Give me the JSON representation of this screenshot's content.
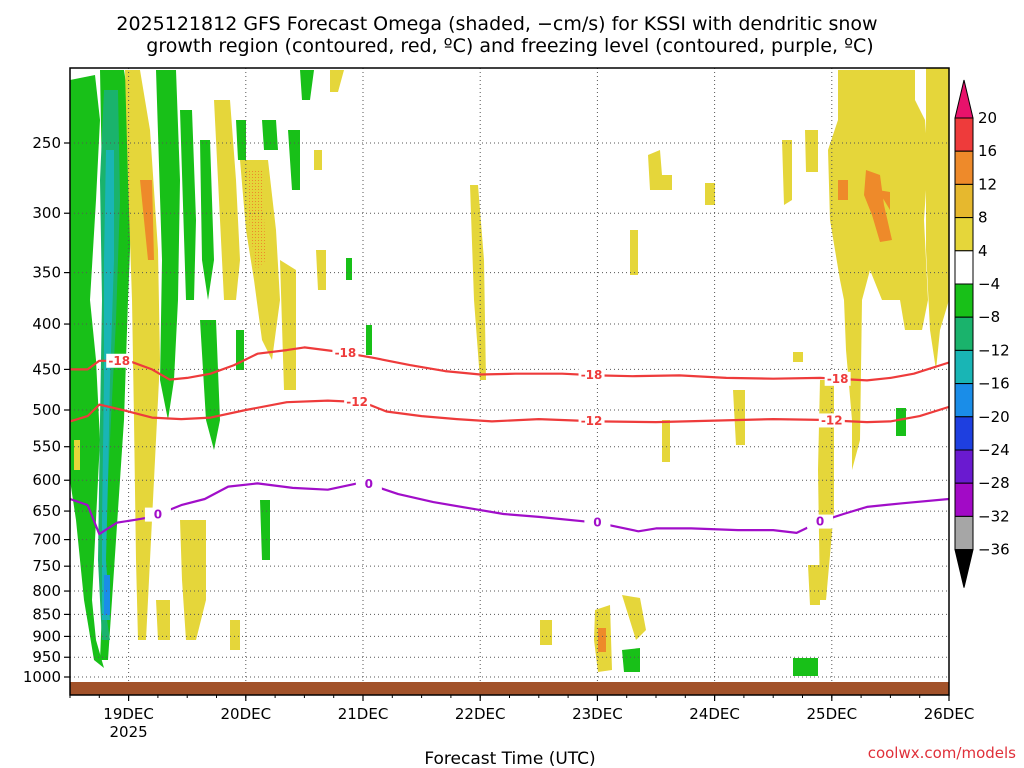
{
  "chart_data": {
    "type": "heatmap",
    "title_line1": "2025121812 GFS Forecast Omega (shaded, −cm/s) for KSSI with dendritic snow",
    "title_line2": "growth region (contoured, red, ºC) and freezing level (contoured, purple, ºC)",
    "xlabel": "Forecast Time (UTC)",
    "credit": "coolwx.com/models",
    "x_range_days": [
      0,
      7.5
    ],
    "x_ticks": [
      {
        "day": 0.5,
        "label": "19DEC",
        "sublabel": "2025"
      },
      {
        "day": 1.5,
        "label": "20DEC"
      },
      {
        "day": 2.5,
        "label": "21DEC"
      },
      {
        "day": 3.5,
        "label": "22DEC"
      },
      {
        "day": 4.5,
        "label": "23DEC"
      },
      {
        "day": 5.5,
        "label": "24DEC"
      },
      {
        "day": 6.5,
        "label": "25DEC"
      },
      {
        "day": 7.5,
        "label": "26DEC"
      }
    ],
    "y_axis": {
      "scale": "log",
      "range_hPa": [
        200,
        1030
      ],
      "ticks": [
        250,
        300,
        350,
        400,
        450,
        500,
        550,
        600,
        650,
        700,
        750,
        800,
        850,
        900,
        950,
        1000
      ]
    },
    "colorbar": {
      "levels": [
        20,
        16,
        12,
        8,
        4,
        -4,
        -8,
        -12,
        -16,
        -20,
        -24,
        -28,
        -32,
        -36
      ],
      "colors": [
        "#e8126b",
        "#ee3b3b",
        "#ee8a2a",
        "#e6b82e",
        "#e5d63a",
        "#ffffff",
        "#18c018",
        "#1ab36c",
        "#19b5b5",
        "#1a8de8",
        "#1e3fe0",
        "#6a1ad0",
        "#a20ac6",
        "#a6a6a6",
        "#000000"
      ]
    },
    "contours": [
      {
        "name": "-18",
        "color": "#ee3b3b",
        "points": [
          [
            0,
            450
          ],
          [
            0.15,
            450
          ],
          [
            0.25,
            440
          ],
          [
            0.5,
            440
          ],
          [
            0.7,
            450
          ],
          [
            0.85,
            462
          ],
          [
            1.0,
            460
          ],
          [
            1.2,
            455
          ],
          [
            1.4,
            445
          ],
          [
            1.6,
            432
          ],
          [
            1.85,
            428
          ],
          [
            2.0,
            425
          ],
          [
            2.3,
            430
          ],
          [
            2.6,
            437
          ],
          [
            2.9,
            445
          ],
          [
            3.2,
            452
          ],
          [
            3.5,
            456
          ],
          [
            3.8,
            455
          ],
          [
            4.2,
            455
          ],
          [
            4.5,
            457
          ],
          [
            4.8,
            458
          ],
          [
            5.2,
            457
          ],
          [
            5.6,
            460
          ],
          [
            6.0,
            461
          ],
          [
            6.4,
            460
          ],
          [
            6.8,
            463
          ],
          [
            7.0,
            460
          ],
          [
            7.2,
            455
          ],
          [
            7.5,
            442
          ]
        ],
        "labels": [
          0.42,
          2.35,
          4.45,
          6.55
        ]
      },
      {
        "name": "-12",
        "color": "#ee3b3b",
        "points": [
          [
            0,
            515
          ],
          [
            0.15,
            508
          ],
          [
            0.25,
            493
          ],
          [
            0.45,
            500
          ],
          [
            0.7,
            510
          ],
          [
            0.95,
            512
          ],
          [
            1.2,
            510
          ],
          [
            1.5,
            500
          ],
          [
            1.85,
            490
          ],
          [
            2.2,
            488
          ],
          [
            2.5,
            490
          ],
          [
            2.7,
            502
          ],
          [
            3.0,
            508
          ],
          [
            3.3,
            512
          ],
          [
            3.6,
            515
          ],
          [
            4.0,
            512
          ],
          [
            4.5,
            515
          ],
          [
            5.0,
            516
          ],
          [
            5.5,
            514
          ],
          [
            6.0,
            512
          ],
          [
            6.4,
            513
          ],
          [
            6.8,
            516
          ],
          [
            7.0,
            515
          ],
          [
            7.25,
            508
          ],
          [
            7.5,
            496
          ]
        ],
        "labels": [
          2.45,
          4.45,
          6.5
        ]
      },
      {
        "name": "0",
        "color": "#a10ec9",
        "points": [
          [
            0,
            630
          ],
          [
            0.15,
            640
          ],
          [
            0.25,
            690
          ],
          [
            0.4,
            670
          ],
          [
            0.55,
            665
          ],
          [
            0.7,
            660
          ],
          [
            0.95,
            640
          ],
          [
            1.15,
            630
          ],
          [
            1.35,
            610
          ],
          [
            1.6,
            605
          ],
          [
            1.9,
            612
          ],
          [
            2.2,
            615
          ],
          [
            2.5,
            603
          ],
          [
            2.8,
            622
          ],
          [
            3.1,
            635
          ],
          [
            3.4,
            645
          ],
          [
            3.7,
            655
          ],
          [
            4.0,
            660
          ],
          [
            4.5,
            670
          ],
          [
            4.85,
            685
          ],
          [
            5.0,
            680
          ],
          [
            5.3,
            680
          ],
          [
            5.7,
            683
          ],
          [
            6.0,
            683
          ],
          [
            6.2,
            688
          ],
          [
            6.4,
            668
          ],
          [
            6.6,
            655
          ],
          [
            6.8,
            643
          ],
          [
            7.1,
            637
          ],
          [
            7.5,
            630
          ]
        ],
        "labels": [
          0.75,
          2.55,
          4.5,
          6.4
        ]
      }
    ]
  }
}
